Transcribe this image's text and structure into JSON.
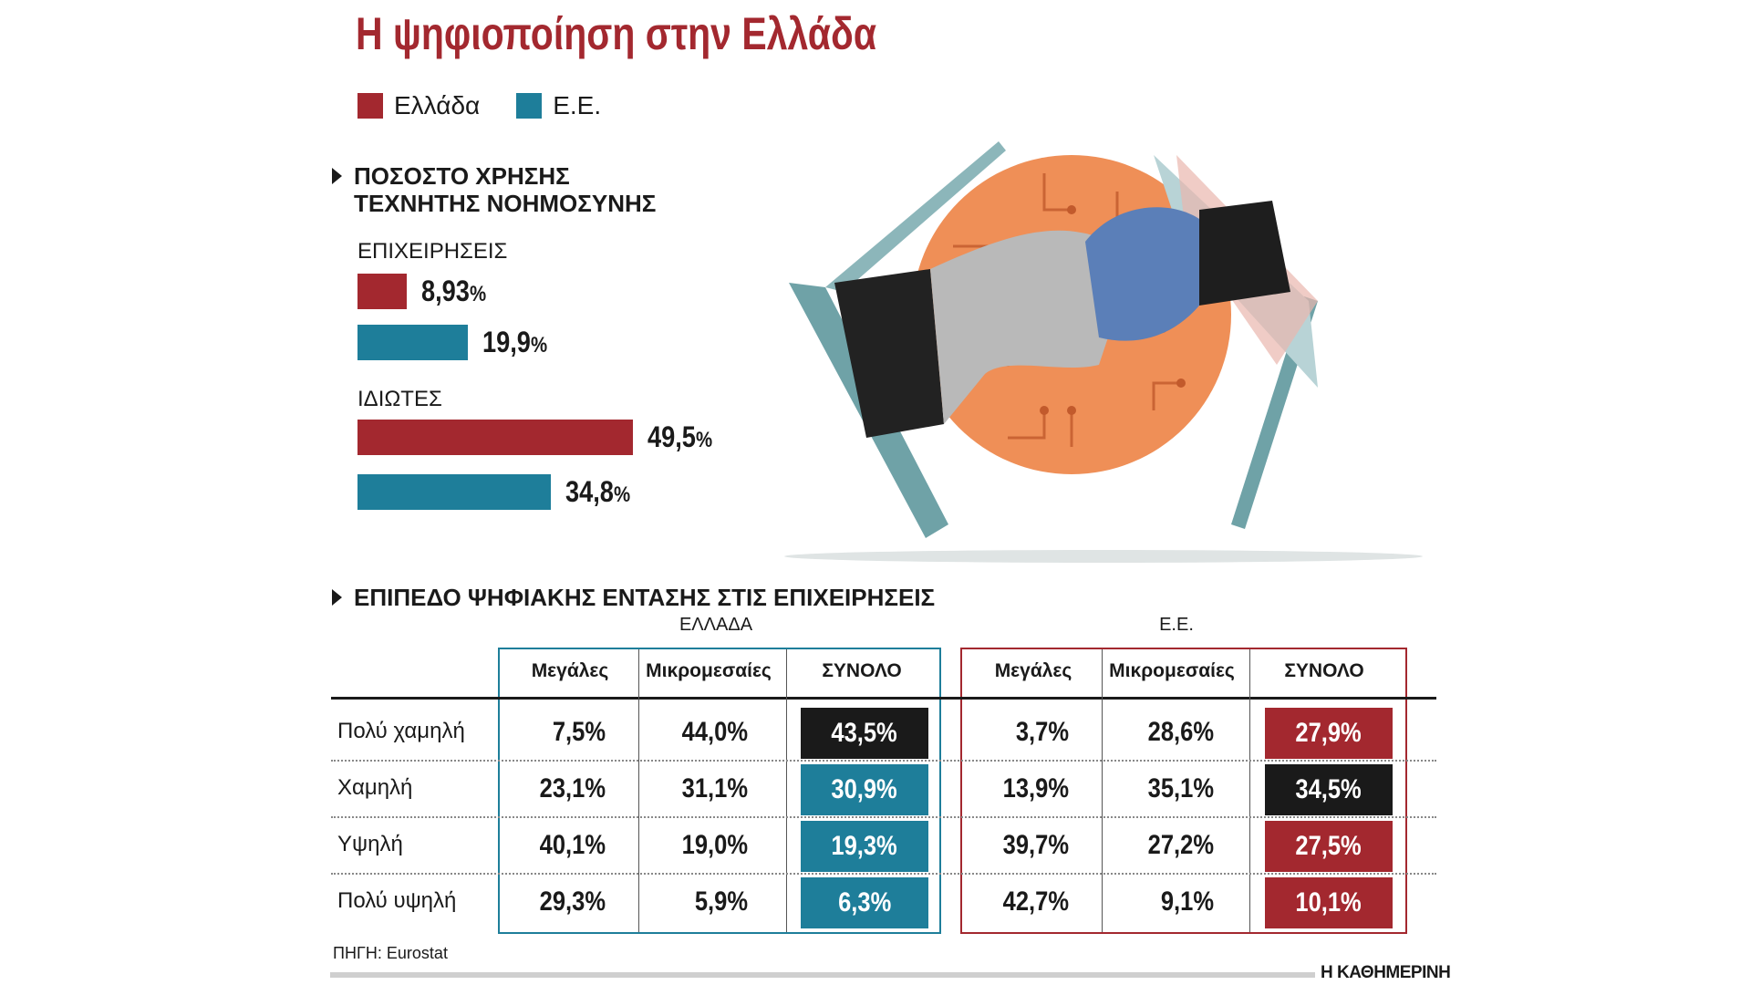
{
  "title": "Η ψηφιοποίηση στην Ελλάδα",
  "legend": [
    {
      "label": "Ελλάδα",
      "color": "#a3282f"
    },
    {
      "label": "Ε.Ε.",
      "color": "#1e7e9a"
    }
  ],
  "ai_section": {
    "heading_line1": "ΠΟΣΟΣΤΟ ΧΡΗΣΗΣ",
    "heading_line2": "ΤΕΧΝΗΤΗΣ ΝΟΗΜΟΣΥΝΗΣ"
  },
  "chart_data": {
    "type": "bar",
    "orientation": "horizontal",
    "groups": [
      {
        "label": "ΕΠΙΧΕΙΡΗΣΕΙΣ",
        "bars": [
          {
            "series": "Ελλάδα",
            "value": 8.93,
            "display": "8,93"
          },
          {
            "series": "Ε.Ε.",
            "value": 19.9,
            "display": "19,9"
          }
        ]
      },
      {
        "label": "ΙΔΙΩΤΕΣ",
        "bars": [
          {
            "series": "Ελλάδα",
            "value": 49.5,
            "display": "49,5"
          },
          {
            "series": "Ε.Ε.",
            "value": 34.8,
            "display": "34,8"
          }
        ]
      }
    ],
    "unit": "%",
    "scale_max": 49.5
  },
  "table": {
    "heading": "ΕΠΙΠΕΔΟ ΨΗΦΙΑΚΗΣ ΕΝΤΑΣΗΣ ΣΤΙΣ ΕΠΙΧΕΙΡΗΣΕΙΣ",
    "group_greece": "ΕΛΛΑΔΑ",
    "group_eu": "Ε.Ε.",
    "columns": [
      "Μεγάλες",
      "Μικρομεσαίες",
      "ΣΥΝΟΛΟ"
    ],
    "rows": [
      {
        "label": "Πολύ χαμηλή",
        "gr": [
          "7,5%",
          "44,0%",
          "43,5%"
        ],
        "eu": [
          "3,7%",
          "28,6%",
          "27,9%"
        ],
        "gr_total_color": "#1a1a1a",
        "eu_total_color": "#a3282f"
      },
      {
        "label": "Χαμηλή",
        "gr": [
          "23,1%",
          "31,1%",
          "30,9%"
        ],
        "eu": [
          "13,9%",
          "35,1%",
          "34,5%"
        ],
        "gr_total_color": "#1e7e9a",
        "eu_total_color": "#1a1a1a"
      },
      {
        "label": "Υψηλή",
        "gr": [
          "40,1%",
          "19,0%",
          "19,3%"
        ],
        "eu": [
          "39,7%",
          "27,2%",
          "27,5%"
        ],
        "gr_total_color": "#1e7e9a",
        "eu_total_color": "#a3282f"
      },
      {
        "label": "Πολύ υψηλή",
        "gr": [
          "29,3%",
          "5,9%",
          "6,3%"
        ],
        "eu": [
          "42,7%",
          "9,1%",
          "10,1%"
        ],
        "gr_total_color": "#1e7e9a",
        "eu_total_color": "#a3282f"
      }
    ]
  },
  "source": "ΠΗΓΗ: Eurostat",
  "brand": "Η ΚΑΘΗΜΕΡΙΝΗ"
}
